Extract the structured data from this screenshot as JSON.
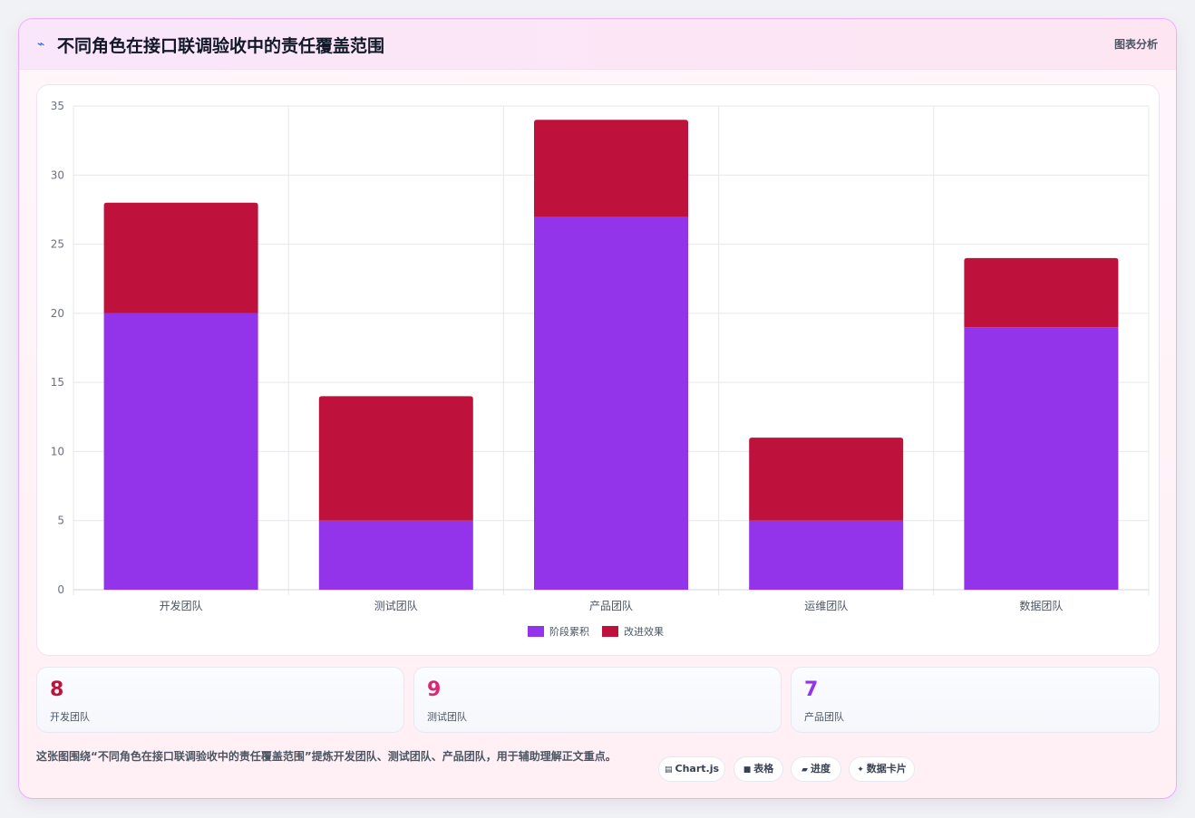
{
  "header": {
    "icon": "⌁",
    "title": "不同角色在接口联调验收中的责任覆盖范围",
    "tag": "图表分析"
  },
  "chart_data": {
    "type": "bar",
    "stacked": true,
    "categories": [
      "开发团队",
      "测试团队",
      "产品团队",
      "运维团队",
      "数据团队"
    ],
    "series": [
      {
        "name": "阶段累积",
        "values": [
          20,
          5,
          27,
          5,
          19
        ],
        "color": "#9333ea"
      },
      {
        "name": "改进效果",
        "values": [
          8,
          9,
          7,
          6,
          5
        ],
        "color": "#be123c"
      }
    ],
    "ylim": [
      0,
      35
    ],
    "yticks": [
      0,
      5,
      10,
      15,
      20,
      25,
      30,
      35
    ],
    "grid": true,
    "legend": "bottom"
  },
  "stats": [
    {
      "value": "8",
      "label": "开发团队",
      "color": "#be123c"
    },
    {
      "value": "9",
      "label": "测试团队",
      "color": "#db2777"
    },
    {
      "value": "7",
      "label": "产品团队",
      "color": "#9333ea"
    }
  ],
  "note": "这张图围绕“不同角色在接口联调验收中的责任覆盖范围”提炼开发团队、测试团队、产品团队，用于辅助理解正文重点。",
  "chips": [
    {
      "icon": "▤",
      "label": "Chart.js"
    },
    {
      "icon": "■",
      "label": "表格"
    },
    {
      "icon": "▰",
      "label": "进度"
    },
    {
      "icon": "✦",
      "label": "数据卡片"
    }
  ]
}
